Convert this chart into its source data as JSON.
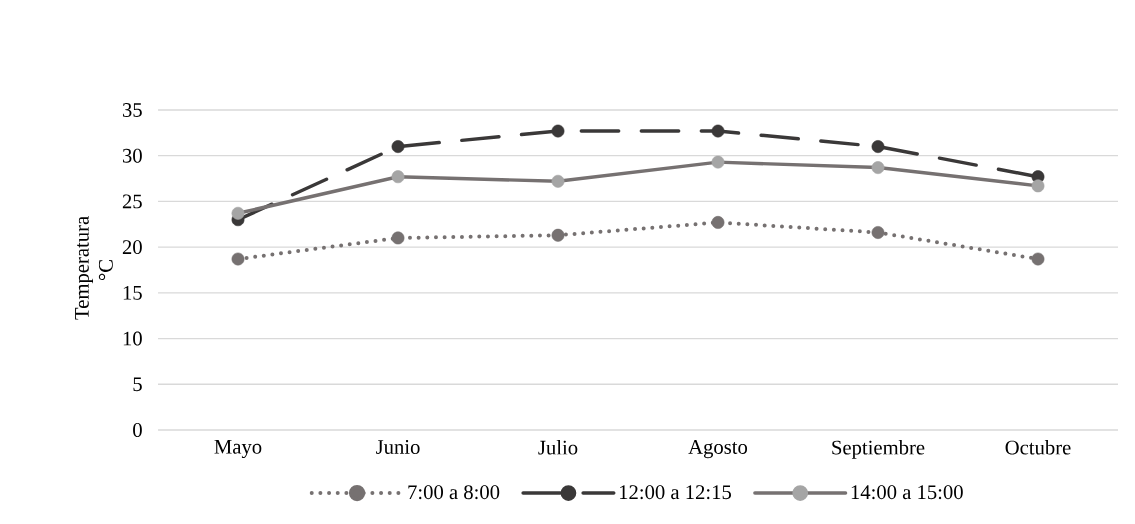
{
  "chart_data": {
    "type": "line",
    "ylabel": "Temperatura °C",
    "categories": [
      "Mayo",
      "Junio",
      "Julio",
      "Agosto",
      "Septiembre",
      "Octubre"
    ],
    "series": [
      {
        "name": "7:00 a 8:00",
        "color": "#767171",
        "line_style": "dotted",
        "values": [
          18.7,
          21.0,
          21.3,
          22.7,
          21.6,
          18.7
        ]
      },
      {
        "name": "12:00 a 12:15",
        "color": "#3a3838",
        "line_style": "dashed",
        "values": [
          23.0,
          31.0,
          32.7,
          32.7,
          31.0,
          27.7
        ]
      },
      {
        "name": "14:00 a 15:00",
        "color": "#767171",
        "colors": [
          "#a5a5a5",
          "#a5a5a5",
          "#a5a5a5",
          "#a5a5a5",
          "#a5a5a5",
          "#a5a5a5"
        ],
        "line_style": "solid",
        "values": [
          23.7,
          27.7,
          27.2,
          29.3,
          28.7,
          26.7
        ]
      }
    ],
    "ylim": [
      0,
      35
    ],
    "yticks": [
      0,
      5,
      10,
      15,
      20,
      25,
      30,
      35
    ],
    "grid": "y",
    "legend": "bottom",
    "marker": "circle"
  }
}
